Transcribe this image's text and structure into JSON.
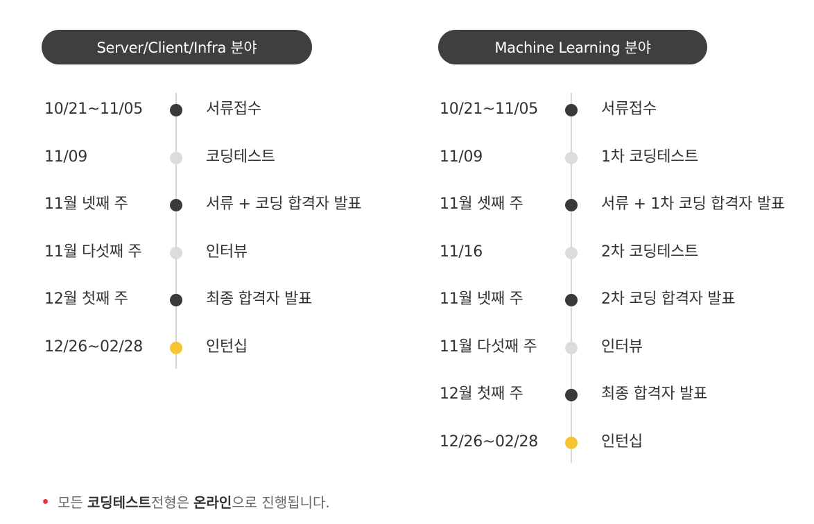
{
  "colors": {
    "pill_bg": "#3f3f3f",
    "timeline_line": "#d6d6d6",
    "dot_dark": "#3a3a3a",
    "dot_light": "#dcdcdc",
    "dot_highlight": "#f7c531",
    "note_bullet": "#e03a3e"
  },
  "left": {
    "title": "Server/Client/Infra 분야",
    "rows": [
      {
        "date": "10/21~11/05",
        "label": "서류접수",
        "dot": "dark"
      },
      {
        "date": "11/09",
        "label": "코딩테스트",
        "dot": "light"
      },
      {
        "date": "11월 넷째 주",
        "label": "서류 + 코딩 합격자 발표",
        "dot": "dark"
      },
      {
        "date": "11월 다섯째 주",
        "label": "인터뷰",
        "dot": "light"
      },
      {
        "date": "12월 첫째 주",
        "label": "최종 합격자 발표",
        "dot": "dark"
      },
      {
        "date": "12/26~02/28",
        "label": "인턴십",
        "dot": "yellow"
      }
    ]
  },
  "right": {
    "title": "Machine Learning 분야",
    "rows": [
      {
        "date": "10/21~11/05",
        "label": "서류접수",
        "dot": "dark"
      },
      {
        "date": "11/09",
        "label": "1차 코딩테스트",
        "dot": "light"
      },
      {
        "date": "11월 셋째 주",
        "label": "서류 + 1차 코딩 합격자 발표",
        "dot": "dark"
      },
      {
        "date": "11/16",
        "label": "2차 코딩테스트",
        "dot": "light"
      },
      {
        "date": "11월 넷째 주",
        "label": "2차 코딩 합격자 발표",
        "dot": "dark"
      },
      {
        "date": "11월 다섯째 주",
        "label": "인터뷰",
        "dot": "light"
      },
      {
        "date": "12월 첫째 주",
        "label": "최종 합격자 발표",
        "dot": "dark"
      },
      {
        "date": "12/26~02/28",
        "label": "인턴십",
        "dot": "yellow"
      }
    ]
  },
  "note": {
    "part1": "모든 ",
    "bold1": "코딩테스트",
    "part2": " 전형은 ",
    "bold2": "온라인",
    "part3": "으로 진행됩니다."
  }
}
